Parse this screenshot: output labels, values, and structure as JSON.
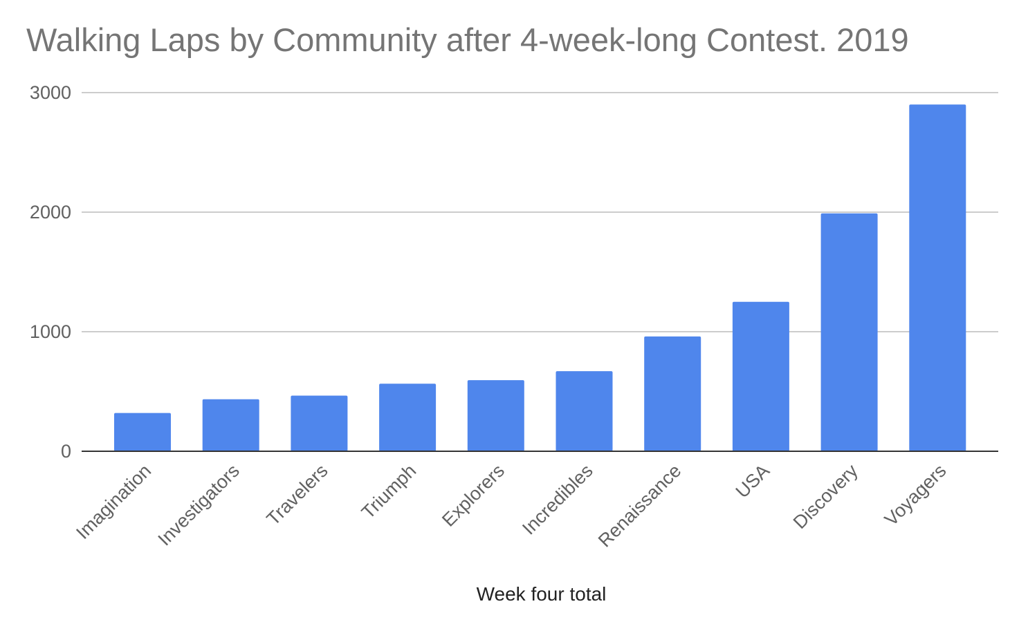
{
  "chart_data": {
    "type": "bar",
    "title": "Walking Laps by Community after 4-week-long Contest. 2019",
    "xlabel": "Week four total",
    "ylabel": "",
    "ylim": [
      0,
      3000
    ],
    "yticks": [
      0,
      1000,
      2000,
      3000
    ],
    "grid": true,
    "legend": "none",
    "bar_color": "#4f86ec",
    "categories": [
      "Imagination",
      "Investigators",
      "Travelers",
      "Triumph",
      "Explorers",
      "Incredibles",
      "Renaissance",
      "USA",
      "Discovery",
      "Voyagers"
    ],
    "values": [
      320,
      435,
      465,
      565,
      595,
      670,
      960,
      1250,
      1990,
      2900
    ]
  }
}
